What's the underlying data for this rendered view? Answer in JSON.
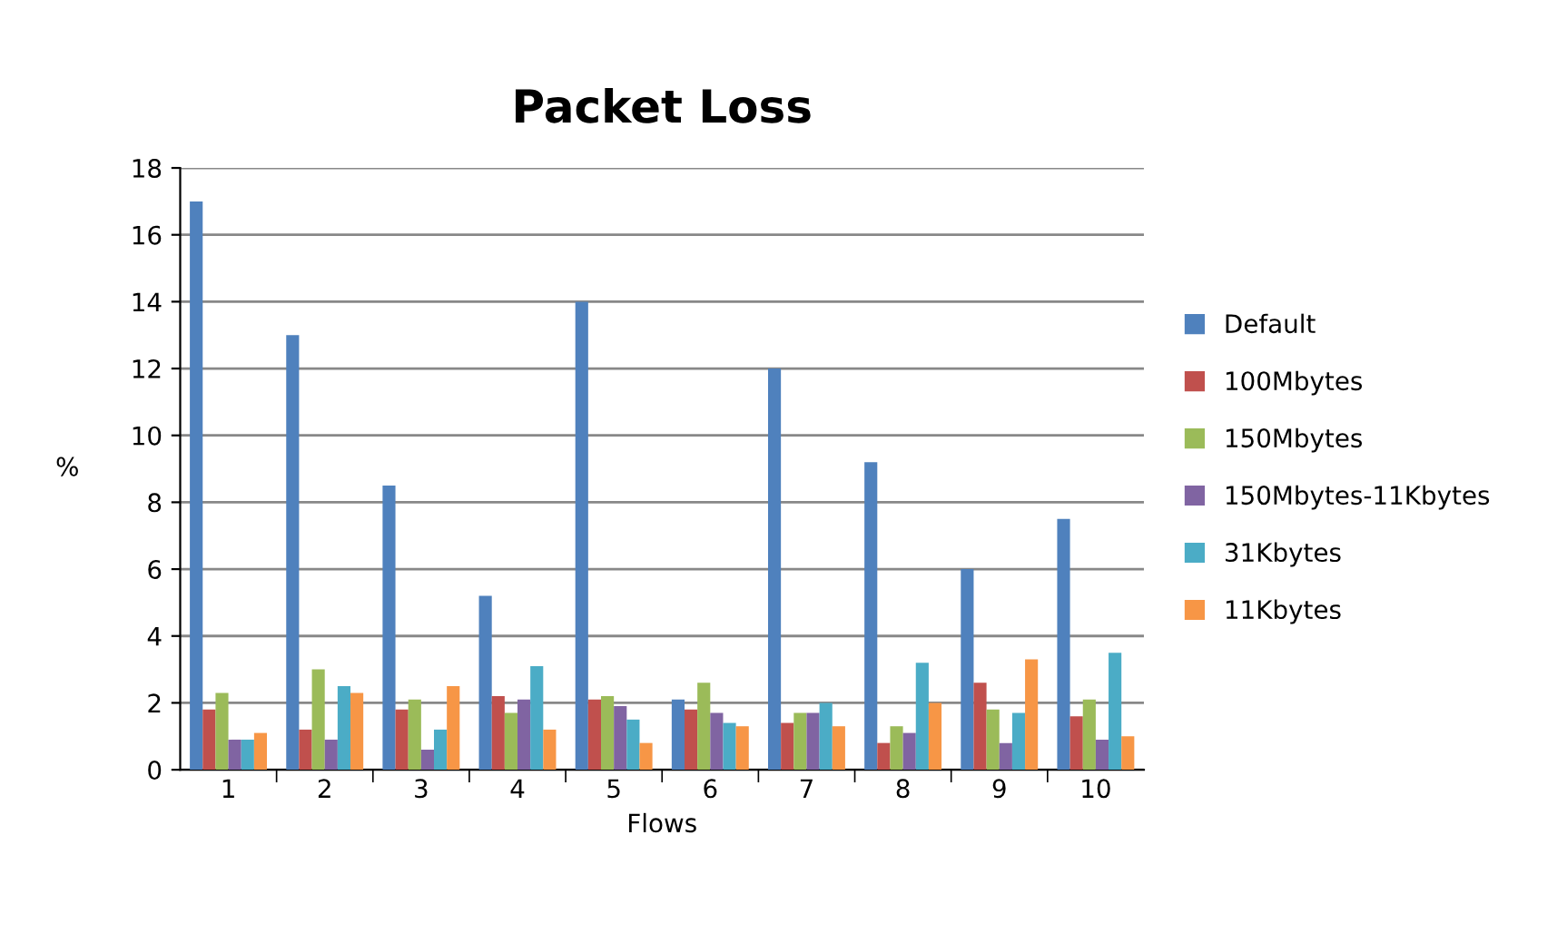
{
  "chart_data": {
    "type": "bar",
    "title": "Packet Loss",
    "xlabel": "Flows",
    "ylabel": "%",
    "categories": [
      "1",
      "2",
      "3",
      "4",
      "5",
      "6",
      "7",
      "8",
      "9",
      "10"
    ],
    "series": [
      {
        "name": "Default",
        "color": "#4f81bd",
        "values": [
          17,
          13,
          8.5,
          5.2,
          14,
          2.1,
          12,
          9.2,
          6.0,
          7.5
        ]
      },
      {
        "name": "100Mbytes",
        "color": "#c0504d",
        "values": [
          1.8,
          1.2,
          1.8,
          2.2,
          2.1,
          1.8,
          1.4,
          0.8,
          2.6,
          1.6
        ]
      },
      {
        "name": "150Mbytes",
        "color": "#9bbb59",
        "values": [
          2.3,
          3.0,
          2.1,
          1.7,
          2.2,
          2.6,
          1.7,
          1.3,
          1.8,
          2.1
        ]
      },
      {
        "name": "150Mbytes-11Kbytes",
        "color": "#8064a2",
        "values": [
          0.9,
          0.9,
          0.6,
          2.1,
          1.9,
          1.7,
          1.7,
          1.1,
          0.8,
          0.9
        ]
      },
      {
        "name": "31Kbytes",
        "color": "#4bacc6",
        "values": [
          0.9,
          2.5,
          1.2,
          3.1,
          1.5,
          1.4,
          2.0,
          3.2,
          1.7,
          3.5
        ]
      },
      {
        "name": "11Kbytes",
        "color": "#f79646",
        "values": [
          1.1,
          2.3,
          2.5,
          1.2,
          0.8,
          1.3,
          1.3,
          2.0,
          3.3,
          1.0
        ]
      }
    ],
    "ylim": [
      0,
      18
    ],
    "yticks": [
      0,
      2,
      4,
      6,
      8,
      10,
      12,
      14,
      16,
      18
    ],
    "grid": "y",
    "legend": "right"
  }
}
